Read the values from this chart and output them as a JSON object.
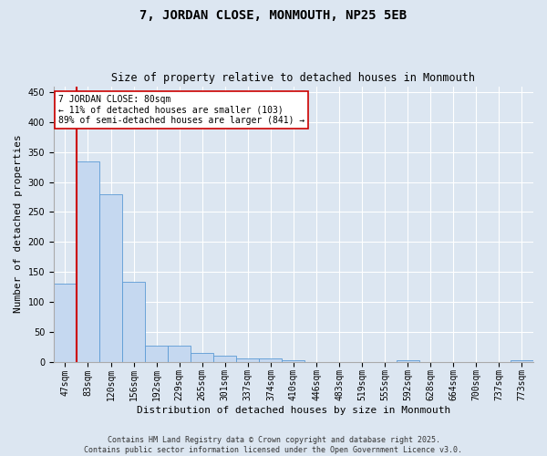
{
  "title": "7, JORDAN CLOSE, MONMOUTH, NP25 5EB",
  "subtitle": "Size of property relative to detached houses in Monmouth",
  "xlabel": "Distribution of detached houses by size in Monmouth",
  "ylabel": "Number of detached properties",
  "categories": [
    "47sqm",
    "83sqm",
    "120sqm",
    "156sqm",
    "192sqm",
    "229sqm",
    "265sqm",
    "301sqm",
    "337sqm",
    "374sqm",
    "410sqm",
    "446sqm",
    "483sqm",
    "519sqm",
    "555sqm",
    "592sqm",
    "628sqm",
    "664sqm",
    "700sqm",
    "737sqm",
    "773sqm"
  ],
  "values": [
    130,
    335,
    280,
    133,
    27,
    26,
    14,
    10,
    6,
    5,
    3,
    0,
    0,
    0,
    0,
    2,
    0,
    0,
    0,
    0,
    3
  ],
  "bar_color": "#c5d8f0",
  "bar_edge_color": "#5b9bd5",
  "vline_color": "#cc0000",
  "annotation_text": "7 JORDAN CLOSE: 80sqm\n← 11% of detached houses are smaller (103)\n89% of semi-detached houses are larger (841) →",
  "annotation_box_color": "#ffffff",
  "annotation_box_edge_color": "#cc0000",
  "ylim": [
    0,
    460
  ],
  "yticks": [
    0,
    50,
    100,
    150,
    200,
    250,
    300,
    350,
    400,
    450
  ],
  "bg_color": "#dce6f1",
  "plot_bg_color": "#dce6f1",
  "footer_line1": "Contains HM Land Registry data © Crown copyright and database right 2025.",
  "footer_line2": "Contains public sector information licensed under the Open Government Licence v3.0.",
  "title_fontsize": 10,
  "subtitle_fontsize": 8.5,
  "tick_fontsize": 7,
  "ylabel_fontsize": 8,
  "xlabel_fontsize": 8,
  "annotation_fontsize": 7,
  "footer_fontsize": 6
}
